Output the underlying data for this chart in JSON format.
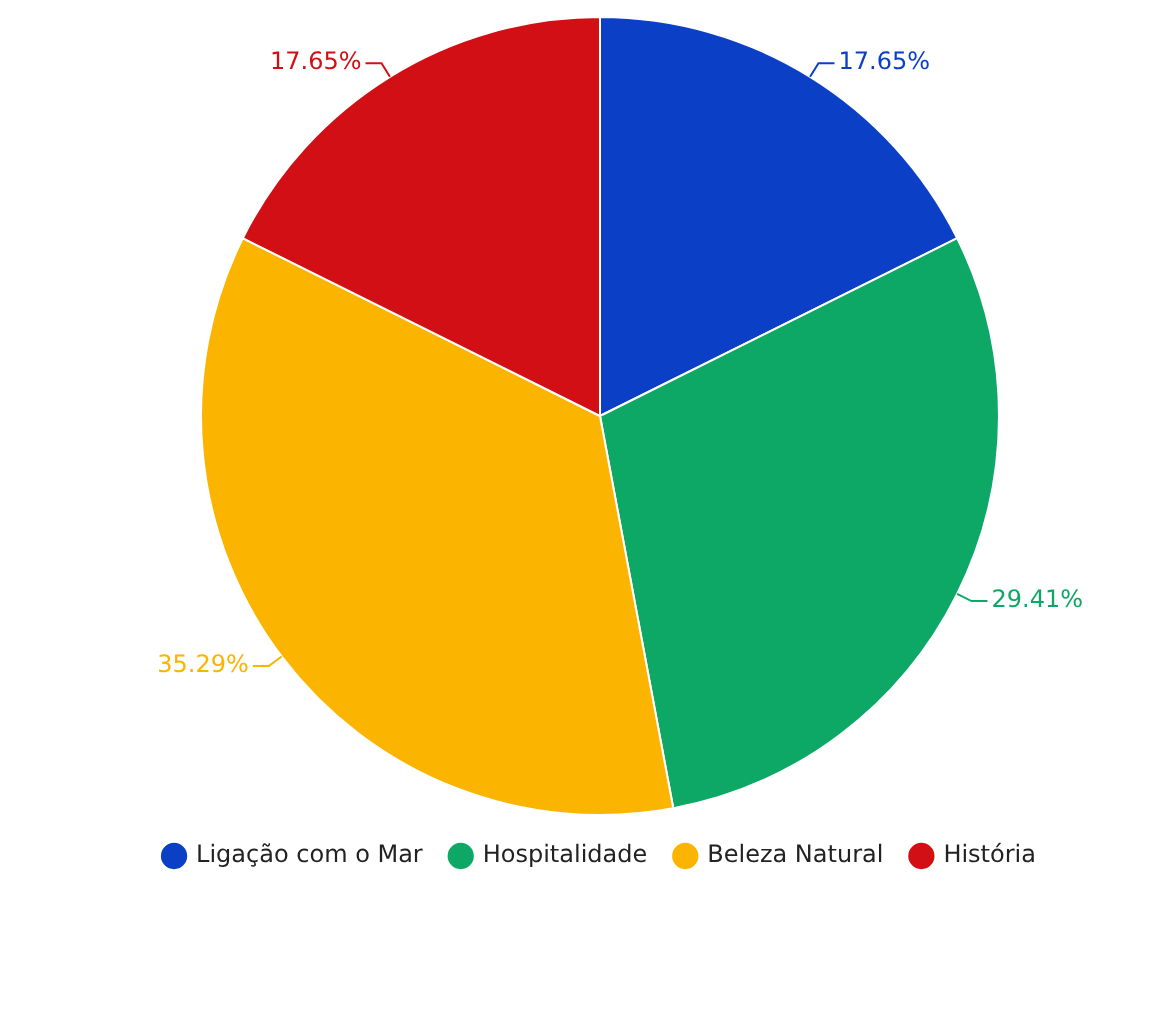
{
  "chart_data": {
    "type": "pie",
    "categories": [
      "Ligação com o Mar",
      "Hospitalidade",
      "Beleza Natural",
      "História"
    ],
    "values": [
      17.65,
      29.41,
      35.29,
      17.65
    ],
    "value_labels": [
      "17.65%",
      "29.41%",
      "35.29%",
      "17.65%"
    ],
    "colors": [
      "#0b3fc6",
      "#0ea866",
      "#fbb400",
      "#d10f14"
    ],
    "legend": "bottom"
  }
}
